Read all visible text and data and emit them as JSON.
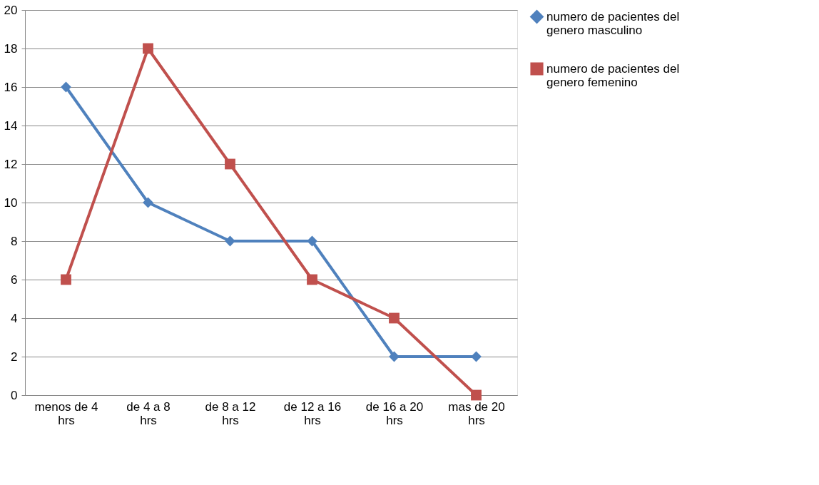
{
  "chart_data": {
    "type": "line",
    "categories": [
      "menos de 4 hrs",
      "de 4 a 8 hrs",
      "de 8 a 12 hrs",
      "de 12 a 16 hrs",
      "de 16 a 20 hrs",
      "mas de 20 hrs"
    ],
    "series": [
      {
        "name": "numero de pacientes del genero masculino",
        "color": "#4f81bd",
        "marker": "diamond",
        "values": [
          16,
          10,
          8,
          8,
          2,
          2
        ]
      },
      {
        "name": "numero de pacientes del genero femenino",
        "color": "#c0504d",
        "marker": "square",
        "values": [
          6,
          18,
          12,
          6,
          4,
          0
        ]
      }
    ],
    "ylim": [
      0,
      20
    ],
    "yticks": [
      0,
      2,
      4,
      6,
      8,
      10,
      12,
      14,
      16,
      18,
      20
    ],
    "grid": "y",
    "legend": "right"
  }
}
